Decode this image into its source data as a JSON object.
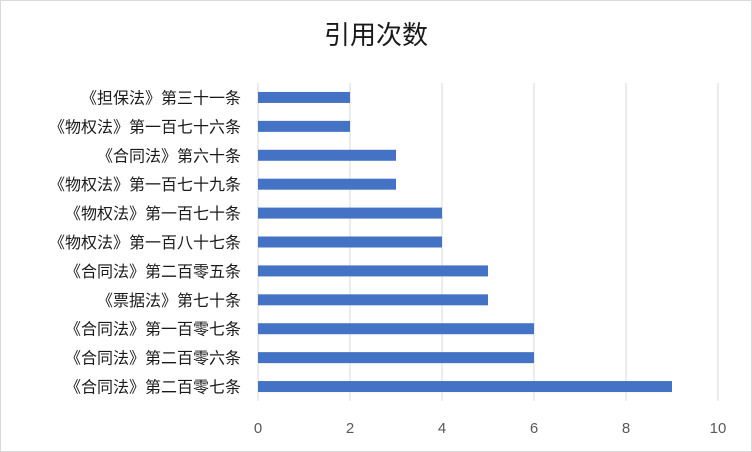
{
  "chart_data": {
    "type": "bar",
    "orientation": "horizontal",
    "title": "引用次数",
    "categories": [
      "《担保法》第三十一条",
      "《物权法》第一百七十六条",
      "《合同法》第六十条",
      "《物权法》第一百七十九条",
      "《物权法》第一百七十条",
      "《物权法》第一百八十七条",
      "《合同法》第二百零五条",
      "《票据法》第七十条",
      "《合同法》第一百零七条",
      "《合同法》第二百零六条",
      "《合同法》第二百零七条"
    ],
    "values": [
      2,
      2,
      3,
      3,
      4,
      4,
      5,
      5,
      6,
      6,
      9
    ],
    "xlim": [
      0,
      10
    ],
    "xticks": [
      "0",
      "2",
      "4",
      "6",
      "8",
      "10"
    ],
    "xlabel": "",
    "ylabel": "",
    "grid": true,
    "legend": "none",
    "bar_color": "#4472c4"
  }
}
